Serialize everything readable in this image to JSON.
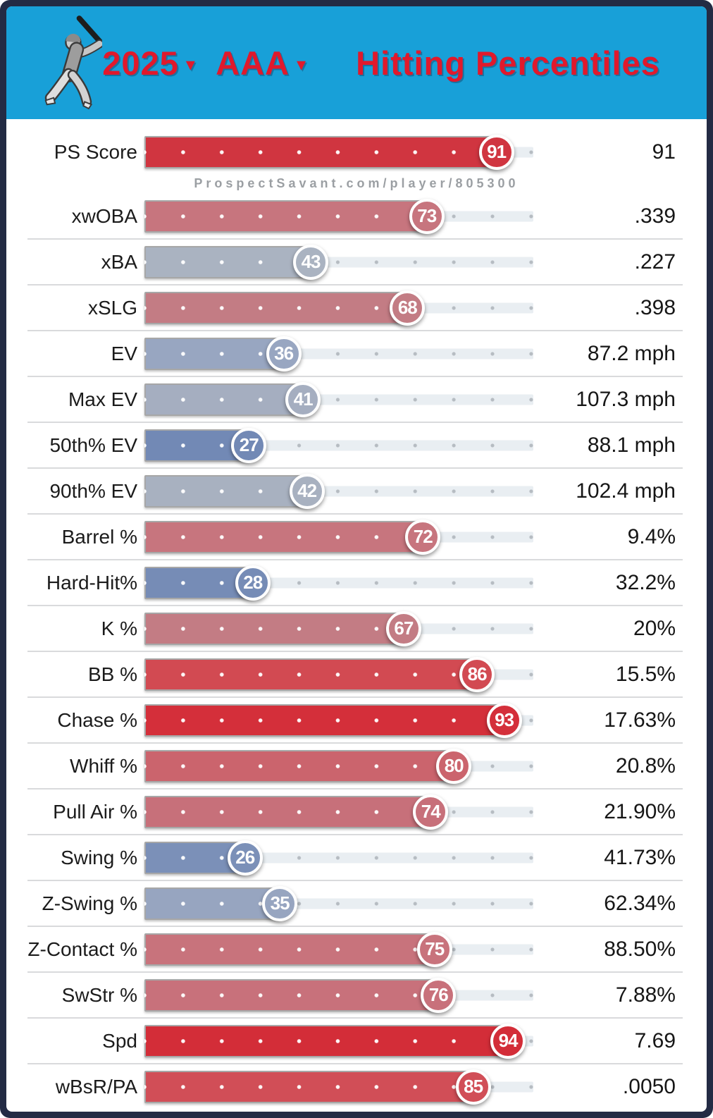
{
  "header": {
    "year": "2025",
    "level": "AAA",
    "title": "Hitting Percentiles",
    "caret": "▾",
    "bg_color": "#18a0d8",
    "text_color": "#e0192c",
    "batter_icon": "batter-swinging-clipart"
  },
  "watermark": "ProspectSavant.com/player/805300",
  "colors": {
    "frame": "#232b44",
    "track": "#e9eef2",
    "track_dot": "#b6bcc2",
    "divider": "#d9dadc"
  },
  "chart_data": {
    "type": "bar",
    "title": "2025 AAA Hitting Percentiles",
    "xlabel": "percentile",
    "xlim": [
      0,
      100
    ],
    "grid": "decile dots",
    "legend": "none",
    "rows": [
      {
        "label": "PS Score",
        "percentile": 91,
        "value": "91",
        "color": "#d03540"
      },
      {
        "label": "xwOBA",
        "percentile": 73,
        "value": ".339",
        "color": "#c7757e"
      },
      {
        "label": "xBA",
        "percentile": 43,
        "value": ".227",
        "color": "#aab3c1"
      },
      {
        "label": "xSLG",
        "percentile": 68,
        "value": ".398",
        "color": "#c37c84"
      },
      {
        "label": "EV",
        "percentile": 36,
        "value": "87.2 mph",
        "color": "#98a6c1"
      },
      {
        "label": "Max EV",
        "percentile": 41,
        "value": "107.3 mph",
        "color": "#a5aec0"
      },
      {
        "label": "50th% EV",
        "percentile": 27,
        "value": "88.1 mph",
        "color": "#7289b5"
      },
      {
        "label": "90th% EV",
        "percentile": 42,
        "value": "102.4 mph",
        "color": "#a8b1c0"
      },
      {
        "label": "Barrel %",
        "percentile": 72,
        "value": "9.4%",
        "color": "#c7757e"
      },
      {
        "label": "Hard-Hit%",
        "percentile": 28,
        "value": "32.2%",
        "color": "#768cb6"
      },
      {
        "label": "K %",
        "percentile": 67,
        "value": "20%",
        "color": "#c37c84"
      },
      {
        "label": "BB %",
        "percentile": 86,
        "value": "15.5%",
        "color": "#d24a52"
      },
      {
        "label": "Chase %",
        "percentile": 93,
        "value": "17.63%",
        "color": "#d42f3a"
      },
      {
        "label": "Whiff %",
        "percentile": 80,
        "value": "20.8%",
        "color": "#cb646d"
      },
      {
        "label": "Pull Air %",
        "percentile": 74,
        "value": "21.90%",
        "color": "#c7707a"
      },
      {
        "label": "Swing %",
        "percentile": 26,
        "value": "41.73%",
        "color": "#7b90b8"
      },
      {
        "label": "Z-Swing %",
        "percentile": 35,
        "value": "62.34%",
        "color": "#97a5c0"
      },
      {
        "label": "Z-Contact %",
        "percentile": 75,
        "value": "88.50%",
        "color": "#c8737c"
      },
      {
        "label": "SwStr %",
        "percentile": 76,
        "value": "7.88%",
        "color": "#c8717b"
      },
      {
        "label": "Spd",
        "percentile": 94,
        "value": "7.69",
        "color": "#d32d38"
      },
      {
        "label": "wBsR/PA",
        "percentile": 85,
        "value": ".0050",
        "color": "#d14e57"
      }
    ]
  }
}
